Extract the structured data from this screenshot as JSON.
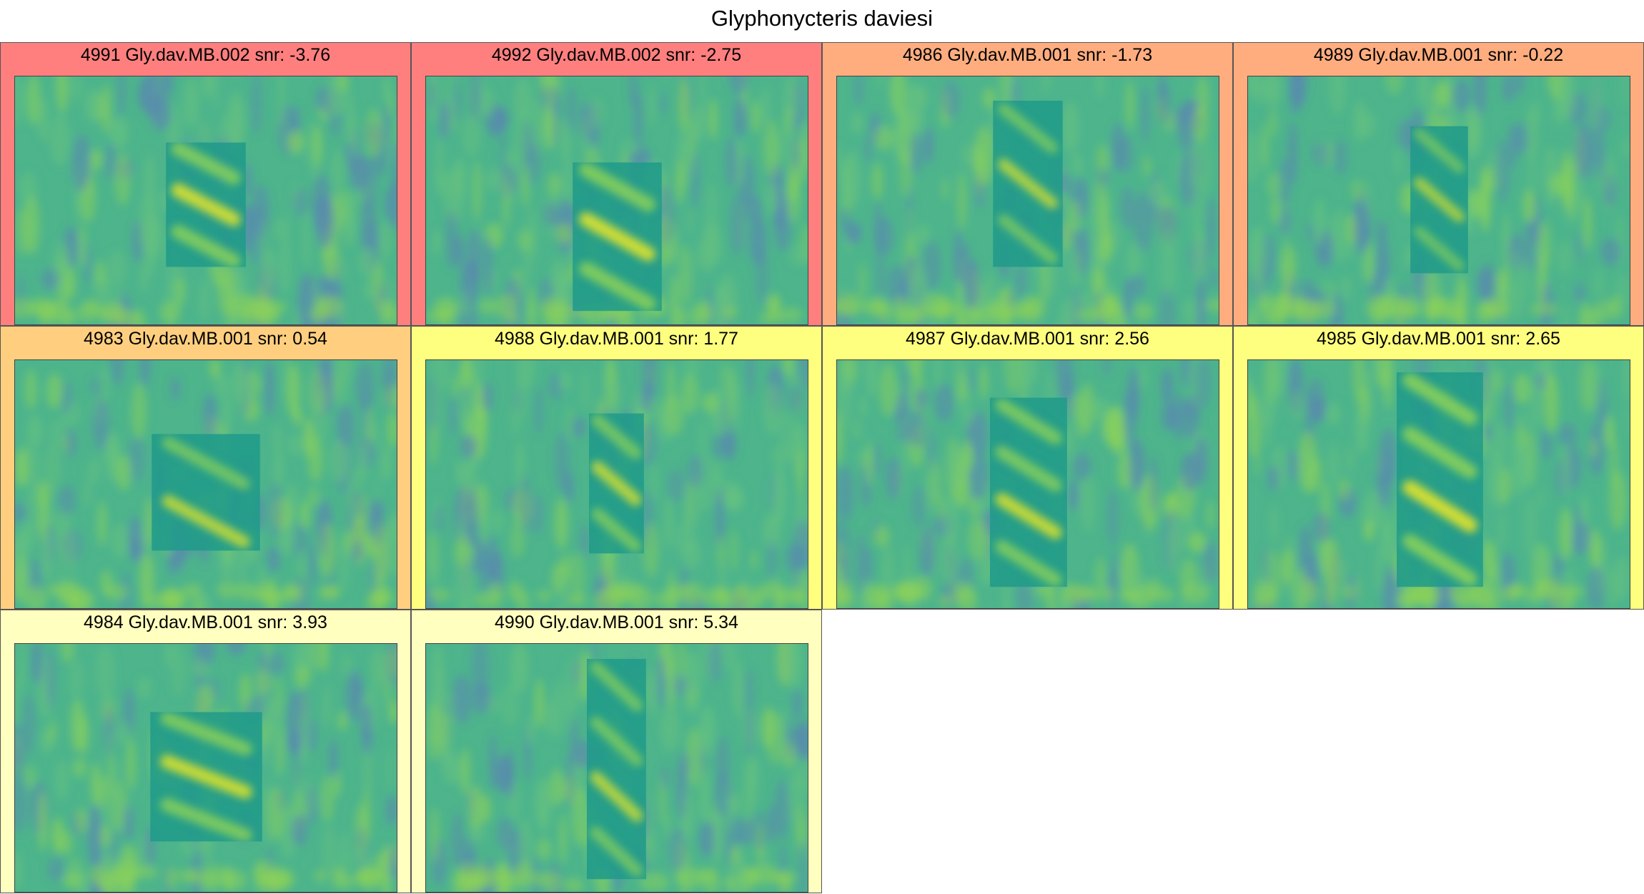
{
  "title": "Glyphonycteris daviesi",
  "colors": {
    "very_low": "#ff7f7f",
    "low": "#ffad7f",
    "mid": "#ffcf7f",
    "high": "#ffff7f",
    "very_high": "#ffffbf",
    "spec_base": "#4db48c",
    "spec_mid": "#8cd25a",
    "spec_bright": "#e6e628",
    "spec_dark": "#1f9a8a",
    "spec_blue": "#5a84b4"
  },
  "panels": [
    {
      "label": "4991 Gly.dav.MB.002 snr: -3.76",
      "snr": -3.76,
      "bg": "#ff7f7f"
    },
    {
      "label": "4992 Gly.dav.MB.002 snr: -2.75",
      "snr": -2.75,
      "bg": "#ff7f7f"
    },
    {
      "label": "4986 Gly.dav.MB.001 snr: -1.73",
      "snr": -1.73,
      "bg": "#ffad7f"
    },
    {
      "label": "4989 Gly.dav.MB.001 snr: -0.22",
      "snr": -0.22,
      "bg": "#ffad7f"
    },
    {
      "label": "4983 Gly.dav.MB.001 snr: 0.54",
      "snr": 0.54,
      "bg": "#ffcf7f"
    },
    {
      "label": "4988 Gly.dav.MB.001 snr: 1.77",
      "snr": 1.77,
      "bg": "#ffff7f"
    },
    {
      "label": "4987 Gly.dav.MB.001 snr: 2.56",
      "snr": 2.56,
      "bg": "#ffff7f"
    },
    {
      "label": "4985 Gly.dav.MB.001 snr: 2.65",
      "snr": 2.65,
      "bg": "#ffff7f"
    },
    {
      "label": "4984 Gly.dav.MB.001 snr: 3.93",
      "snr": 3.93,
      "bg": "#ffffbf"
    },
    {
      "label": "4990 Gly.dav.MB.001 snr: 5.34",
      "snr": 5.34,
      "bg": "#ffffbf"
    }
  ]
}
